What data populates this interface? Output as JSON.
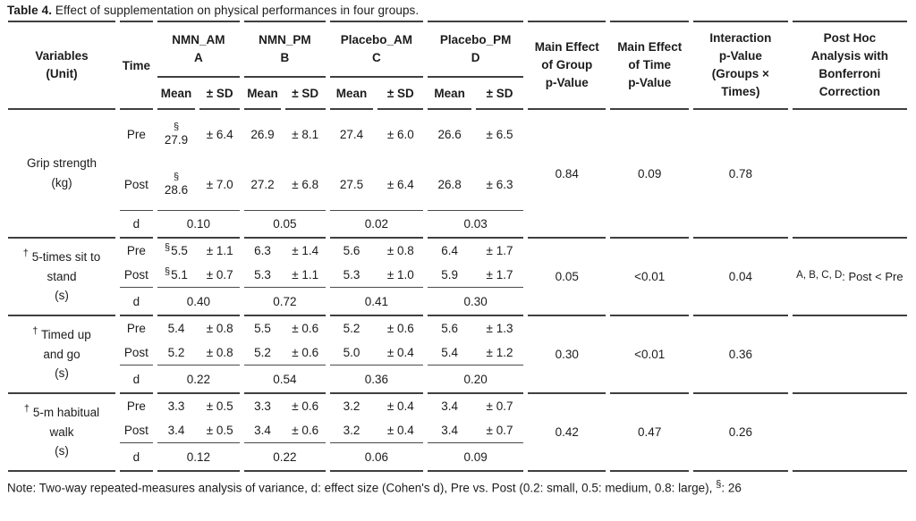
{
  "title": {
    "label": "Table 4.",
    "text": " Effect of supplementation on physical performances in four groups."
  },
  "table": {
    "header": {
      "variables": "Variables\n(Unit)",
      "time": "Time",
      "groups": [
        {
          "name": "NMN_AM",
          "code": "A"
        },
        {
          "name": "NMN_PM",
          "code": "B"
        },
        {
          "name": "Placebo_AM",
          "code": "C"
        },
        {
          "name": "Placebo_PM",
          "code": "D"
        }
      ],
      "mean_label": "Mean",
      "sd_label": "± SD",
      "stats": [
        "Main Effect\nof Group\np-Value",
        "Main Effect\nof Time\np-Value",
        "Interaction\np-Value\n(Groups ×\nTimes)",
        "Post Hoc\nAnalysis with\nBonferroni\nCorrection"
      ]
    },
    "time_labels": {
      "pre": "Pre",
      "post": "Post",
      "d": "d"
    },
    "rows": [
      {
        "variable": {
          "dagger": false,
          "lines": [
            "Grip strength",
            "(kg)"
          ]
        },
        "pre": [
          {
            "sup": "§",
            "stack": true,
            "mean": "27.9",
            "sd": "± 6.4"
          },
          {
            "mean": "26.9",
            "sd": "± 8.1"
          },
          {
            "mean": "27.4",
            "sd": "± 6.0"
          },
          {
            "mean": "26.6",
            "sd": "± 6.5"
          }
        ],
        "post": [
          {
            "sup": "§",
            "stack": true,
            "mean": "28.6",
            "sd": "± 7.0"
          },
          {
            "mean": "27.2",
            "sd": "± 6.8"
          },
          {
            "mean": "27.5",
            "sd": "± 6.4"
          },
          {
            "mean": "26.8",
            "sd": "± 6.3"
          }
        ],
        "d": [
          "0.10",
          "0.05",
          "0.02",
          "0.03"
        ],
        "p_group": "0.84",
        "p_time": "0.09",
        "p_interaction": "0.78",
        "post_hoc": null
      },
      {
        "variable": {
          "dagger": true,
          "lines": [
            "5-times sit to",
            "stand",
            "(s)"
          ]
        },
        "pre": [
          {
            "sup": "§",
            "stack": false,
            "mean": "5.5",
            "sd": "± 1.1"
          },
          {
            "mean": "6.3",
            "sd": "± 1.4"
          },
          {
            "mean": "5.6",
            "sd": "± 0.8"
          },
          {
            "mean": "6.4",
            "sd": "± 1.7"
          }
        ],
        "post": [
          {
            "sup": "§",
            "stack": false,
            "mean": "5.1",
            "sd": "± 0.7"
          },
          {
            "mean": "5.3",
            "sd": "± 1.1"
          },
          {
            "mean": "5.3",
            "sd": "± 1.0"
          },
          {
            "mean": "5.9",
            "sd": "± 1.7"
          }
        ],
        "d": [
          "0.40",
          "0.72",
          "0.41",
          "0.30"
        ],
        "p_group": "0.05",
        "p_time": "<0.01",
        "p_interaction": "0.04",
        "post_hoc": {
          "prefix": "A, B, C, D",
          "text": ": Post < Pre"
        }
      },
      {
        "variable": {
          "dagger": true,
          "lines": [
            "Timed up",
            "and go",
            "(s)"
          ]
        },
        "pre": [
          {
            "mean": "5.4",
            "sd": "± 0.8"
          },
          {
            "mean": "5.5",
            "sd": "± 0.6"
          },
          {
            "mean": "5.2",
            "sd": "± 0.6"
          },
          {
            "mean": "5.6",
            "sd": "± 1.3"
          }
        ],
        "post": [
          {
            "mean": "5.2",
            "sd": "± 0.8"
          },
          {
            "mean": "5.2",
            "sd": "± 0.6"
          },
          {
            "mean": "5.0",
            "sd": "± 0.4"
          },
          {
            "mean": "5.4",
            "sd": "± 1.2"
          }
        ],
        "d": [
          "0.22",
          "0.54",
          "0.36",
          "0.20"
        ],
        "p_group": "0.30",
        "p_time": "<0.01",
        "p_interaction": "0.36",
        "post_hoc": null
      },
      {
        "variable": {
          "dagger": true,
          "lines": [
            "5-m habitual",
            "walk",
            "(s)"
          ]
        },
        "pre": [
          {
            "mean": "3.3",
            "sd": "± 0.5"
          },
          {
            "mean": "3.3",
            "sd": "± 0.6"
          },
          {
            "mean": "3.2",
            "sd": "± 0.4"
          },
          {
            "mean": "3.4",
            "sd": "± 0.7"
          }
        ],
        "post": [
          {
            "mean": "3.4",
            "sd": "± 0.5"
          },
          {
            "mean": "3.4",
            "sd": "± 0.6"
          },
          {
            "mean": "3.2",
            "sd": "± 0.4"
          },
          {
            "mean": "3.4",
            "sd": "± 0.7"
          }
        ],
        "d": [
          "0.12",
          "0.22",
          "0.06",
          "0.09"
        ],
        "p_group": "0.42",
        "p_time": "0.47",
        "p_interaction": "0.26",
        "post_hoc": null
      }
    ]
  },
  "note": {
    "body": "Note: Two-way repeated-measures analysis of variance, d: effect size (Cohen's d), Pre vs. Post (0.2: small, 0.5: medium, 0.8: large), ",
    "sup": "§",
    "tail": ": 26"
  },
  "colors": {
    "rule": "#3f3f3f",
    "text": "#1c1c1c",
    "background": "#ffffff"
  }
}
